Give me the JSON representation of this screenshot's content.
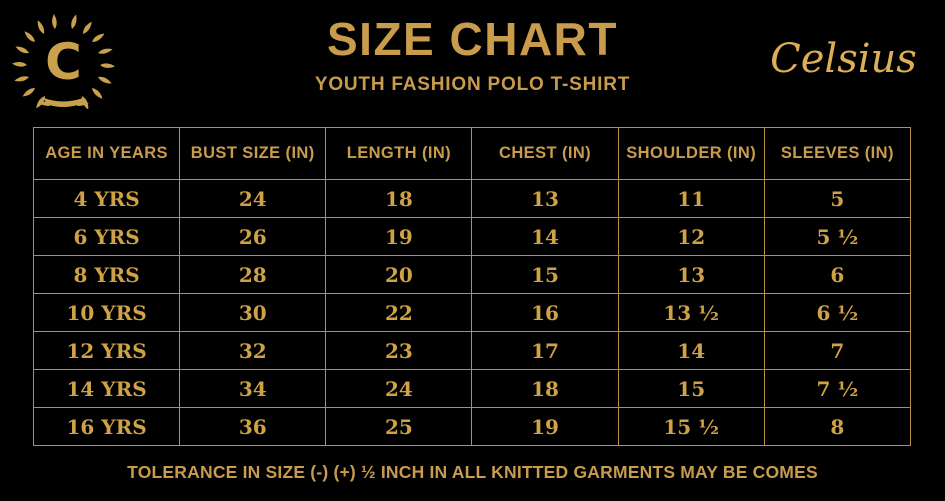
{
  "colors": {
    "background": "#000000",
    "gold_text": "#C89B4D",
    "table_number_gold": "#CFA245",
    "table_border": "#B8913E",
    "script_gold": "#DCAE55"
  },
  "logo": {
    "letter": "C"
  },
  "header": {
    "title": "SIZE CHART",
    "subtitle": "YOUTH FASHION POLO T-SHIRT",
    "brand_script": "Celsius"
  },
  "chart_data": {
    "type": "table",
    "title": "SIZE CHART",
    "subtitle": "YOUTH FASHION POLO T-SHIRT",
    "columns": [
      "AGE IN YEARS",
      "BUST SIZE (IN)",
      "LENGTH (IN)",
      "CHEST (IN)",
      "SHOULDER (IN)",
      "SLEEVES (IN)"
    ],
    "rows": [
      [
        "4 YRS",
        "24",
        "18",
        "13",
        "11",
        "5"
      ],
      [
        "6 YRS",
        "26",
        "19",
        "14",
        "12",
        "5 ½"
      ],
      [
        "8 YRS",
        "28",
        "20",
        "15",
        "13",
        "6"
      ],
      [
        "10 YRS",
        "30",
        "22",
        "16",
        "13 ½",
        "6 ½"
      ],
      [
        "12 YRS",
        "32",
        "23",
        "17",
        "14",
        "7"
      ],
      [
        "14 YRS",
        "34",
        "24",
        "18",
        "15",
        "7 ½"
      ],
      [
        "16 YRS",
        "36",
        "25",
        "19",
        "15 ½",
        "8"
      ]
    ]
  },
  "footer": {
    "note": "TOLERANCE IN SIZE (-) (+)  ½ INCH IN ALL KNITTED GARMENTS MAY BE COMES"
  }
}
